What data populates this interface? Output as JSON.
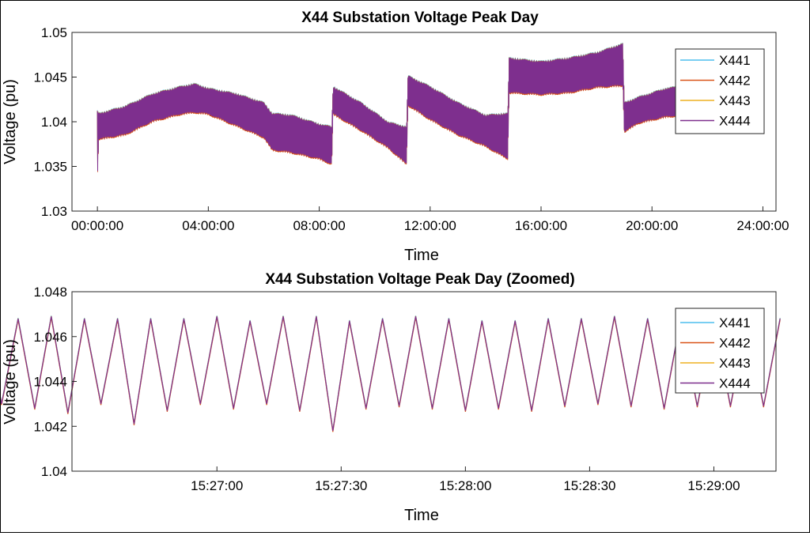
{
  "chart_data": [
    {
      "type": "line",
      "title": "X44 Substation Voltage Peak Day",
      "xlabel": "Time",
      "ylabel": "Voltage (pu)",
      "xlim": [
        "00:00:00",
        "24:00:00"
      ],
      "ylim": [
        1.03,
        1.05
      ],
      "x_ticks": [
        "00:00:00",
        "04:00:00",
        "08:00:00",
        "12:00:00",
        "16:00:00",
        "20:00:00",
        "24:00:00"
      ],
      "y_ticks": [
        "1.03",
        "1.035",
        "1.04",
        "1.045",
        "1.05"
      ],
      "grid": false,
      "legend_location": "top-right",
      "series_names": [
        "X441",
        "X442",
        "X443",
        "X444"
      ],
      "series_colors": [
        "#4DBEEE",
        "#D95319",
        "#EDB120",
        "#7E2F8E"
      ],
      "envelope": {
        "x_hours": [
          0,
          0.05,
          1.0,
          2.0,
          3.0,
          3.5,
          4.0,
          5.0,
          6.0,
          6.3,
          7.0,
          8.0,
          8.45,
          8.5,
          9.5,
          10.5,
          11.15,
          11.2,
          12.0,
          13.0,
          14.0,
          14.8,
          14.85,
          16.0,
          17.0,
          18.0,
          18.95,
          19.0,
          19.5,
          20.5,
          21.5,
          22.0
        ],
        "upper": [
          1.0412,
          1.041,
          1.0418,
          1.0432,
          1.044,
          1.0443,
          1.0438,
          1.0432,
          1.0422,
          1.041,
          1.0408,
          1.0398,
          1.0395,
          1.044,
          1.0422,
          1.04,
          1.0395,
          1.0452,
          1.044,
          1.0422,
          1.0408,
          1.041,
          1.0472,
          1.0468,
          1.0472,
          1.0478,
          1.0488,
          1.0422,
          1.0428,
          1.0438,
          1.0442,
          1.044
        ],
        "lower": [
          1.0335,
          1.038,
          1.0385,
          1.04,
          1.0408,
          1.041,
          1.0408,
          1.0395,
          1.0382,
          1.0368,
          1.0365,
          1.0358,
          1.0352,
          1.0408,
          1.039,
          1.037,
          1.0352,
          1.0418,
          1.0402,
          1.0385,
          1.0372,
          1.0358,
          1.0432,
          1.043,
          1.0432,
          1.0438,
          1.044,
          1.0388,
          1.0398,
          1.0405,
          1.0408,
          1.0405
        ]
      }
    },
    {
      "type": "line",
      "title": "X44 Substation Voltage Peak Day (Zoomed)",
      "xlabel": "Time",
      "ylabel": "Voltage (pu)",
      "xlim": [
        "15:26:25",
        "15:29:15"
      ],
      "ylim": [
        1.04,
        1.048
      ],
      "x_ticks": [
        "15:27:00",
        "15:27:30",
        "15:28:00",
        "15:28:30",
        "15:29:00"
      ],
      "y_ticks": [
        "1.04",
        "1.042",
        "1.044",
        "1.046",
        "1.048"
      ],
      "grid": false,
      "legend_location": "top-right",
      "series_names": [
        "X441",
        "X442",
        "X443",
        "X444"
      ],
      "series_colors": [
        "#4DBEEE",
        "#D95319",
        "#EDB120",
        "#7E2F8E"
      ],
      "x_seconds_after_1526": [
        4,
        8,
        12,
        16,
        20,
        24,
        28,
        32,
        36,
        40,
        44,
        48,
        52,
        56,
        60,
        64,
        68,
        72,
        76,
        80,
        84,
        88,
        92,
        96,
        100,
        104,
        108,
        112,
        116,
        120,
        124,
        128,
        132,
        136,
        140,
        144,
        148,
        152,
        156,
        160,
        164,
        168,
        172,
        176,
        180,
        184,
        188,
        192,
        196
      ],
      "values": [
        1.0469,
        1.043,
        1.0468,
        1.0428,
        1.0469,
        1.0426,
        1.0468,
        1.043,
        1.0468,
        1.0421,
        1.0468,
        1.0427,
        1.0468,
        1.043,
        1.0469,
        1.0428,
        1.0467,
        1.043,
        1.0469,
        1.0427,
        1.0469,
        1.0418,
        1.0467,
        1.0428,
        1.0468,
        1.0429,
        1.0469,
        1.0428,
        1.0468,
        1.0427,
        1.0467,
        1.0428,
        1.0467,
        1.0427,
        1.0468,
        1.0429,
        1.0468,
        1.043,
        1.0469,
        1.0429,
        1.0468,
        1.0428,
        1.0468,
        1.0429,
        1.0468,
        1.0429,
        1.0467,
        1.0429,
        1.0468
      ]
    }
  ]
}
